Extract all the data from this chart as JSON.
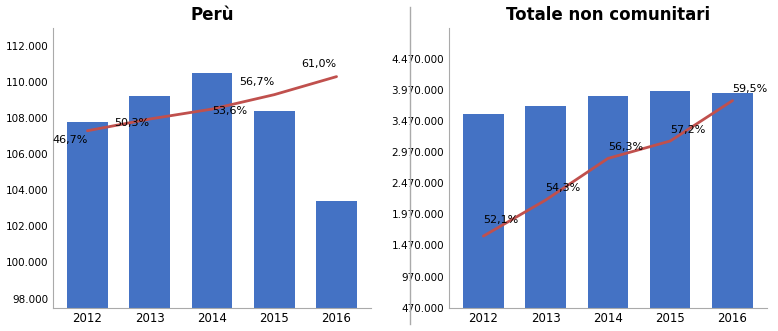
{
  "left": {
    "title": "Perù",
    "years": [
      2012,
      2013,
      2014,
      2015,
      2016
    ],
    "bar_values": [
      107800,
      109200,
      110500,
      108400,
      103400
    ],
    "line_values": [
      107300,
      107950,
      108500,
      109300,
      110300
    ],
    "pct_labels": [
      "46,7%",
      "50,3%",
      "53,6%",
      "56,7%",
      "61,0%"
    ],
    "pct_offsets": [
      -800,
      -500,
      -400,
      400,
      400
    ],
    "pct_halign": [
      "right",
      "right",
      "left",
      "right",
      "right"
    ],
    "ylim": [
      97500,
      113000
    ],
    "yticks": [
      98000,
      100000,
      102000,
      104000,
      106000,
      108000,
      110000,
      112000
    ],
    "ytick_labels": [
      "98.000",
      "100.000",
      "102.000",
      "104.000",
      "106.000",
      "108.000",
      "110.000",
      "112.000"
    ]
  },
  "right": {
    "title": "Totale non comunitari",
    "years": [
      2012,
      2013,
      2014,
      2015,
      2016
    ],
    "bar_values": [
      3580000,
      3720000,
      3870000,
      3960000,
      3920000
    ],
    "line_values": [
      1620000,
      2200000,
      2870000,
      3150000,
      3800000
    ],
    "pct_labels": [
      "52,1%",
      "54,3%",
      "56,3%",
      "57,2%",
      "59,5%"
    ],
    "pct_offsets": [
      180000,
      120000,
      100000,
      100000,
      100000
    ],
    "pct_halign": [
      "left",
      "left",
      "left",
      "left",
      "left"
    ],
    "ylim": [
      470000,
      4970000
    ],
    "yticks": [
      470000,
      970000,
      1470000,
      1970000,
      2470000,
      2970000,
      3470000,
      3970000,
      4470000
    ],
    "ytick_labels": [
      "470.000",
      "970.000",
      "1.470.000",
      "1.970.000",
      "2.470.000",
      "2.970.000",
      "3.470.000",
      "3.970.000",
      "4.470.000"
    ]
  },
  "bar_color": "#4472C4",
  "line_color": "#C0504D",
  "background_color": "#FFFFFF",
  "separator_color": "#AAAAAA"
}
